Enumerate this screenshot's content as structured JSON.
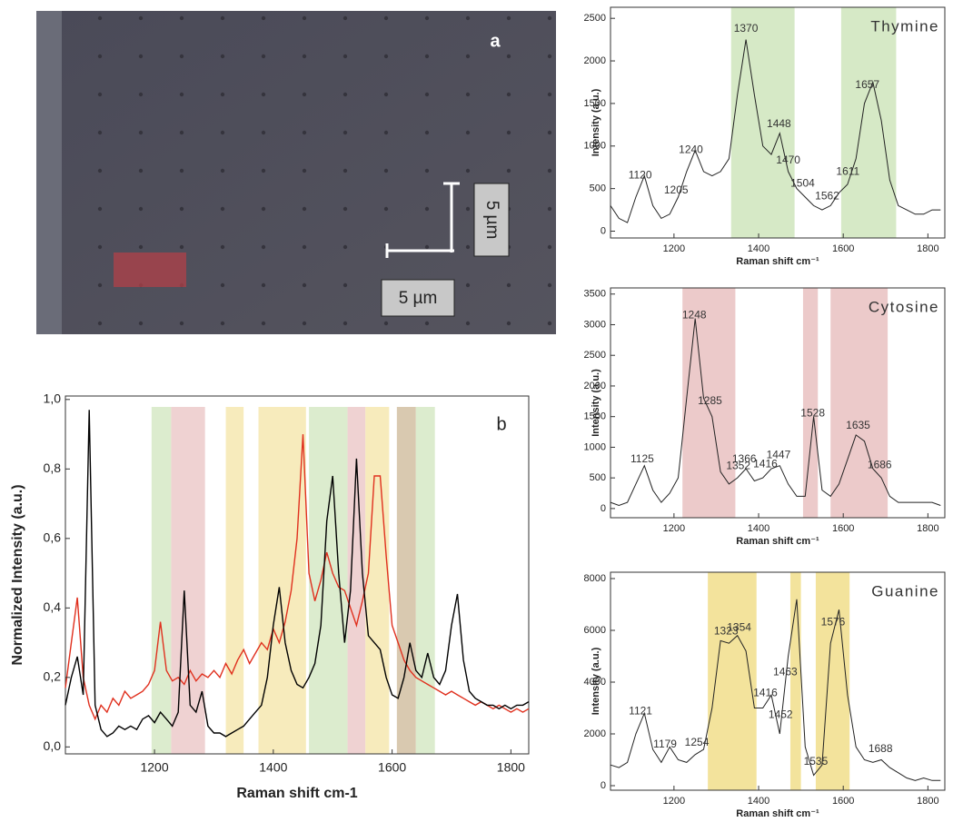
{
  "image_panel": {
    "panel_label": "a",
    "scale_labels": [
      "5 µm",
      "5 µm"
    ]
  },
  "chart_data": [
    {
      "type": "line",
      "panel_label": "b",
      "xlabel": "Raman shift cm-1",
      "ylabel": "Normalized Intensity (a.u.)",
      "xlim": [
        1050,
        1830
      ],
      "ylim": [
        -0.02,
        1.01
      ],
      "xticks": [
        1200,
        1400,
        1600,
        1800
      ],
      "yticks": [
        {
          "value": 0,
          "label": "0,0"
        },
        {
          "value": 0.2,
          "label": "0,2"
        },
        {
          "value": 0.4,
          "label": "0,4"
        },
        {
          "value": 0.6,
          "label": "0,6"
        },
        {
          "value": 0.8,
          "label": "0,8"
        },
        {
          "value": 1.0,
          "label": "1,0"
        }
      ],
      "bands": [
        {
          "start": 1195,
          "end": 1228,
          "color": "#d6e9c6"
        },
        {
          "start": 1228,
          "end": 1285,
          "color": "#eccaca"
        },
        {
          "start": 1320,
          "end": 1350,
          "color": "#f6e8b0"
        },
        {
          "start": 1375,
          "end": 1455,
          "color": "#f6e8b0"
        },
        {
          "start": 1460,
          "end": 1525,
          "color": "#d6e9c6"
        },
        {
          "start": 1525,
          "end": 1555,
          "color": "#eccaca"
        },
        {
          "start": 1555,
          "end": 1595,
          "color": "#f6e8b0"
        },
        {
          "start": 1608,
          "end": 1640,
          "color": "#d2bfa2"
        },
        {
          "start": 1640,
          "end": 1672,
          "color": "#d6e9c6"
        }
      ],
      "x": [
        1050,
        1060,
        1070,
        1080,
        1090,
        1100,
        1110,
        1120,
        1130,
        1140,
        1150,
        1160,
        1170,
        1180,
        1190,
        1200,
        1210,
        1220,
        1230,
        1240,
        1250,
        1260,
        1270,
        1280,
        1290,
        1300,
        1310,
        1320,
        1330,
        1340,
        1350,
        1360,
        1370,
        1380,
        1390,
        1400,
        1410,
        1420,
        1430,
        1440,
        1450,
        1460,
        1470,
        1480,
        1490,
        1500,
        1510,
        1520,
        1530,
        1540,
        1550,
        1560,
        1570,
        1580,
        1590,
        1600,
        1610,
        1620,
        1630,
        1640,
        1650,
        1660,
        1670,
        1680,
        1690,
        1700,
        1710,
        1720,
        1730,
        1740,
        1750,
        1760,
        1770,
        1780,
        1790,
        1800,
        1810,
        1820,
        1830
      ],
      "series": [
        {
          "color": "#e0301e",
          "values": [
            0.17,
            0.3,
            0.43,
            0.2,
            0.12,
            0.08,
            0.12,
            0.1,
            0.14,
            0.12,
            0.16,
            0.14,
            0.15,
            0.16,
            0.18,
            0.22,
            0.36,
            0.22,
            0.19,
            0.2,
            0.18,
            0.22,
            0.19,
            0.21,
            0.2,
            0.22,
            0.2,
            0.24,
            0.21,
            0.25,
            0.28,
            0.24,
            0.27,
            0.3,
            0.28,
            0.34,
            0.3,
            0.36,
            0.45,
            0.6,
            0.9,
            0.5,
            0.42,
            0.48,
            0.56,
            0.5,
            0.46,
            0.45,
            0.4,
            0.35,
            0.42,
            0.5,
            0.78,
            0.78,
            0.55,
            0.35,
            0.3,
            0.25,
            0.22,
            0.2,
            0.19,
            0.18,
            0.17,
            0.16,
            0.15,
            0.16,
            0.15,
            0.14,
            0.13,
            0.12,
            0.13,
            0.12,
            0.11,
            0.12,
            0.11,
            0.1,
            0.11,
            0.1,
            0.11
          ]
        },
        {
          "color": "#000000",
          "values": [
            0.12,
            0.2,
            0.26,
            0.15,
            0.97,
            0.12,
            0.05,
            0.03,
            0.04,
            0.06,
            0.05,
            0.06,
            0.05,
            0.08,
            0.09,
            0.07,
            0.1,
            0.08,
            0.06,
            0.1,
            0.45,
            0.12,
            0.1,
            0.16,
            0.06,
            0.04,
            0.04,
            0.03,
            0.04,
            0.05,
            0.06,
            0.08,
            0.1,
            0.12,
            0.2,
            0.35,
            0.46,
            0.3,
            0.22,
            0.18,
            0.17,
            0.2,
            0.24,
            0.35,
            0.65,
            0.78,
            0.5,
            0.3,
            0.45,
            0.83,
            0.5,
            0.32,
            0.3,
            0.28,
            0.2,
            0.15,
            0.14,
            0.2,
            0.3,
            0.22,
            0.2,
            0.27,
            0.2,
            0.18,
            0.22,
            0.35,
            0.44,
            0.25,
            0.16,
            0.14,
            0.13,
            0.12,
            0.12,
            0.11,
            0.12,
            0.11,
            0.12,
            0.12,
            0.13
          ]
        }
      ]
    },
    {
      "type": "line",
      "title": "Thymine",
      "xlabel": "Raman shift cm⁻¹",
      "ylabel": "Intensity (a.u.)",
      "xlim": [
        1050,
        1840
      ],
      "ylim": [
        -80,
        2630
      ],
      "xticks": [
        1200,
        1400,
        1600,
        1800
      ],
      "yticks": [
        0,
        500,
        1000,
        1500,
        2000,
        2500
      ],
      "bands": [
        {
          "start": 1335,
          "end": 1485,
          "color": "#d6e9c6"
        },
        {
          "start": 1595,
          "end": 1725,
          "color": "#d6e9c6"
        }
      ],
      "peak_labels": [
        1120,
        1205,
        1240,
        1370,
        1448,
        1470,
        1504,
        1562,
        1611,
        1657
      ],
      "x": [
        1050,
        1070,
        1090,
        1110,
        1130,
        1150,
        1170,
        1190,
        1210,
        1230,
        1250,
        1270,
        1290,
        1310,
        1330,
        1350,
        1370,
        1390,
        1410,
        1430,
        1450,
        1470,
        1490,
        1510,
        1530,
        1550,
        1570,
        1590,
        1610,
        1630,
        1650,
        1670,
        1690,
        1710,
        1730,
        1750,
        1770,
        1790,
        1810,
        1830
      ],
      "series": [
        {
          "color": "#222222",
          "values": [
            300,
            150,
            100,
            400,
            650,
            300,
            150,
            200,
            400,
            700,
            950,
            700,
            650,
            700,
            850,
            1600,
            2250,
            1600,
            1000,
            900,
            1150,
            700,
            500,
            400,
            300,
            250,
            300,
            450,
            550,
            850,
            1500,
            1750,
            1300,
            600,
            300,
            250,
            200,
            200,
            250,
            250
          ]
        }
      ]
    },
    {
      "type": "line",
      "title": "Cytosine",
      "xlabel": "Raman shift cm⁻¹",
      "ylabel": "Intensity (a.u.)",
      "xlim": [
        1050,
        1840
      ],
      "ylim": [
        -150,
        3600
      ],
      "xticks": [
        1200,
        1400,
        1600,
        1800
      ],
      "yticks": [
        0,
        500,
        1000,
        1500,
        2000,
        2500,
        3000,
        3500
      ],
      "bands": [
        {
          "start": 1220,
          "end": 1345,
          "color": "#eccaca"
        },
        {
          "start": 1505,
          "end": 1540,
          "color": "#eccaca"
        },
        {
          "start": 1570,
          "end": 1705,
          "color": "#eccaca"
        }
      ],
      "peak_labels": [
        1125,
        1248,
        1285,
        1352,
        1366,
        1416,
        1447,
        1528,
        1635,
        1686
      ],
      "x": [
        1050,
        1070,
        1090,
        1110,
        1130,
        1150,
        1170,
        1190,
        1210,
        1230,
        1250,
        1270,
        1290,
        1310,
        1330,
        1350,
        1370,
        1390,
        1410,
        1430,
        1450,
        1470,
        1490,
        1510,
        1530,
        1550,
        1570,
        1590,
        1610,
        1630,
        1650,
        1670,
        1690,
        1710,
        1730,
        1750,
        1770,
        1790,
        1810,
        1830
      ],
      "series": [
        {
          "color": "#222222",
          "values": [
            100,
            50,
            100,
            400,
            700,
            300,
            100,
            250,
            500,
            1800,
            3100,
            1800,
            1500,
            600,
            400,
            500,
            650,
            450,
            500,
            650,
            700,
            400,
            200,
            200,
            1500,
            300,
            200,
            400,
            800,
            1200,
            1100,
            650,
            500,
            200,
            100,
            100,
            100,
            100,
            100,
            50
          ]
        }
      ]
    },
    {
      "type": "line",
      "title": "Guanine",
      "xlabel": "Raman shift cm⁻¹",
      "ylabel": "Intensity (a.u.)",
      "xlim": [
        1050,
        1840
      ],
      "ylim": [
        -175,
        8245
      ],
      "xticks": [
        1200,
        1400,
        1600,
        1800
      ],
      "yticks": [
        0,
        2000,
        4000,
        6000,
        8000
      ],
      "bands": [
        {
          "start": 1280,
          "end": 1395,
          "color": "#f3e39c"
        },
        {
          "start": 1475,
          "end": 1500,
          "color": "#f3e39c"
        },
        {
          "start": 1535,
          "end": 1615,
          "color": "#f3e39c"
        }
      ],
      "peak_labels": [
        1121,
        1179,
        1254,
        1323,
        1354,
        1416,
        1452,
        1463,
        1535,
        1576,
        1688
      ],
      "x": [
        1050,
        1070,
        1090,
        1110,
        1130,
        1150,
        1170,
        1190,
        1210,
        1230,
        1250,
        1270,
        1290,
        1310,
        1330,
        1350,
        1370,
        1390,
        1410,
        1430,
        1450,
        1470,
        1490,
        1510,
        1530,
        1550,
        1570,
        1590,
        1610,
        1630,
        1650,
        1670,
        1690,
        1710,
        1730,
        1750,
        1770,
        1790,
        1810,
        1830
      ],
      "series": [
        {
          "color": "#222222",
          "values": [
            800,
            700,
            900,
            2000,
            2800,
            1400,
            900,
            1500,
            1000,
            900,
            1200,
            1400,
            3000,
            5600,
            5500,
            5800,
            5200,
            3000,
            3000,
            3500,
            2000,
            5000,
            7200,
            1500,
            400,
            800,
            5500,
            6800,
            3500,
            1500,
            1000,
            900,
            1000,
            700,
            500,
            300,
            200,
            300,
            200,
            200
          ]
        }
      ]
    }
  ]
}
